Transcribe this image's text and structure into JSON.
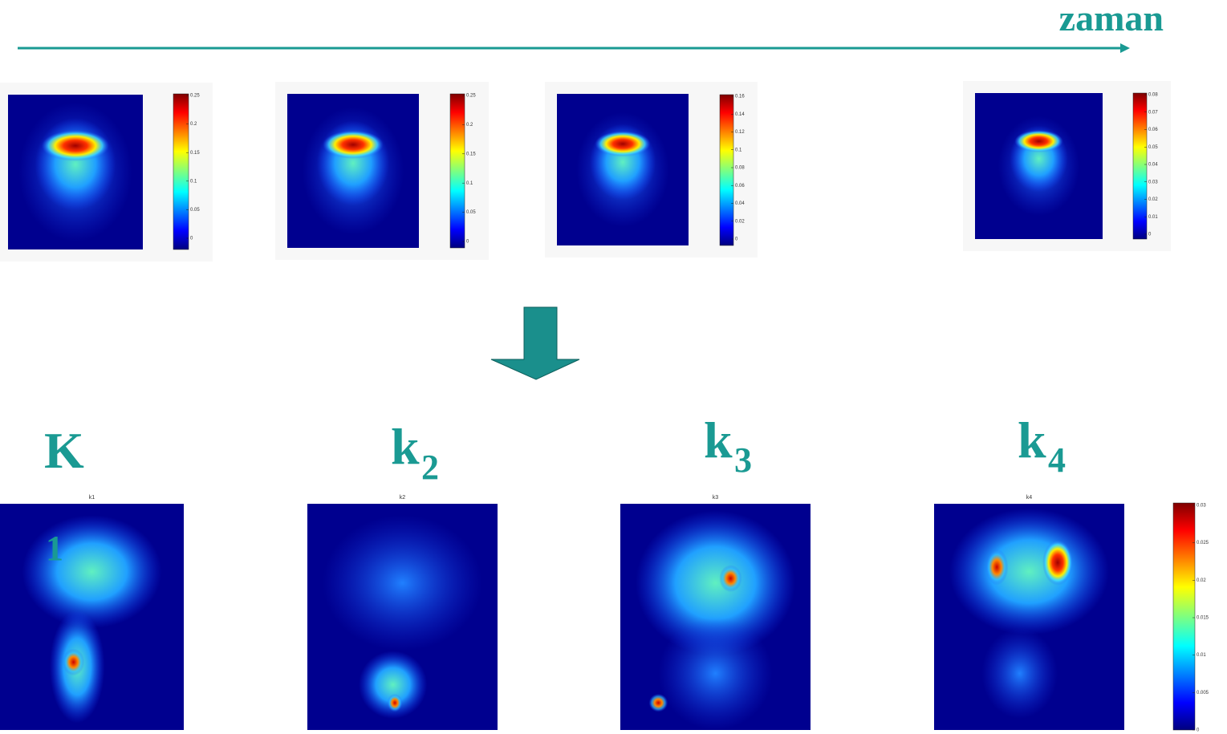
{
  "header": {
    "title": "zaman"
  },
  "frames": [
    {
      "colorbar_ticks": [
        "0.25",
        "0.2",
        "0.15",
        "0.1",
        "0.05",
        "0"
      ]
    },
    {
      "colorbar_ticks": [
        "0.25",
        "0.2",
        "0.15",
        "0.1",
        "0.05",
        "0"
      ]
    },
    {
      "colorbar_ticks": [
        "0.16",
        "0.14",
        "0.12",
        "0.1",
        "0.08",
        "0.06",
        "0.04",
        "0.02",
        "0"
      ]
    },
    {
      "colorbar_ticks": [
        "0.08",
        "0.07",
        "0.06",
        "0.05",
        "0.04",
        "0.03",
        "0.02",
        "0.01",
        "0"
      ]
    }
  ],
  "parameters": [
    {
      "symbol": "K",
      "subscript": "1",
      "plot_title": "k1"
    },
    {
      "symbol": "k",
      "subscript": "2",
      "plot_title": "k2"
    },
    {
      "symbol": "k",
      "subscript": "3",
      "plot_title": "k3"
    },
    {
      "symbol": "k",
      "subscript": "4",
      "plot_title": "k4"
    }
  ],
  "colorbar": {
    "ticks": [
      "0.03",
      "0.025",
      "0.02",
      "0.015",
      "0.01",
      "0.005",
      "0"
    ]
  }
}
